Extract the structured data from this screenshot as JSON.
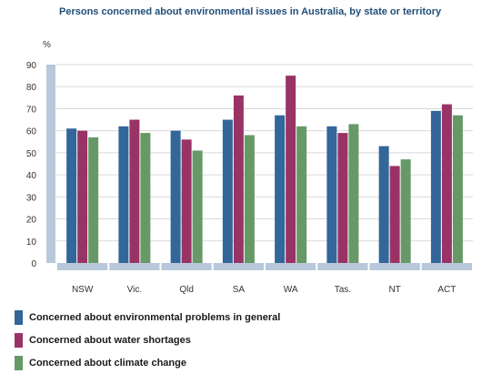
{
  "chart_data": {
    "type": "bar",
    "title": "Persons concerned about environmental issues in Australia, by state or territory",
    "ylabel": "%",
    "xlabel": "",
    "ylim": [
      0,
      90
    ],
    "yticks": [
      0,
      10,
      20,
      30,
      40,
      50,
      60,
      70,
      80,
      90
    ],
    "grid": true,
    "legend_position": "bottom",
    "categories": [
      "NSW",
      "Vic.",
      "Qld",
      "SA",
      "WA",
      "Tas.",
      "NT",
      "ACT"
    ],
    "series": [
      {
        "name": "Concerned about environmental problems in general",
        "color": "#336699",
        "values": [
          61,
          62,
          60,
          65,
          67,
          62,
          53,
          69
        ]
      },
      {
        "name": "Concerned about water shortages",
        "color": "#993366",
        "values": [
          60,
          65,
          56,
          76,
          85,
          59,
          44,
          72
        ]
      },
      {
        "name": "Concerned about climate change",
        "color": "#669966",
        "values": [
          57,
          59,
          51,
          58,
          62,
          63,
          47,
          67
        ]
      }
    ]
  },
  "colors": {
    "axis_band": "#b8c8da",
    "gridline": "#d9d9d9"
  }
}
